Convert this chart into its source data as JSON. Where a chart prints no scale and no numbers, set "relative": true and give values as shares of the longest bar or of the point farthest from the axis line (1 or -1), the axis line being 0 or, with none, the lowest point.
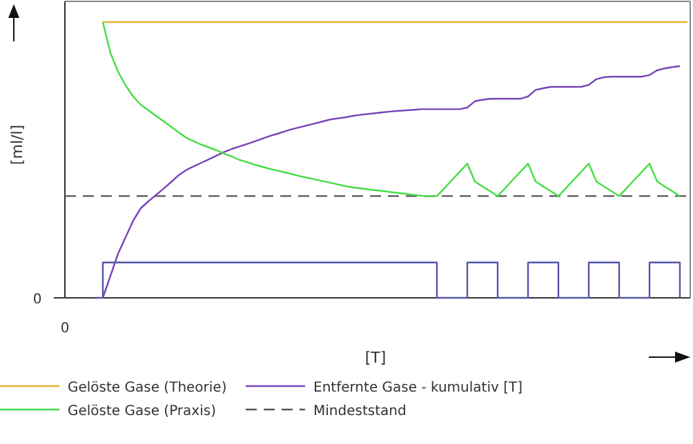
{
  "chart_data": {
    "type": "line",
    "relative": true,
    "xlabel": "[T]",
    "ylabel": "[ml/l]",
    "annotations": [
      "0",
      "0"
    ],
    "legend": "bottom",
    "categories": [
      null,
      null,
      null,
      null,
      null,
      null,
      null,
      null,
      null,
      null,
      null,
      null,
      null,
      null,
      null,
      null,
      null,
      null,
      null,
      null,
      null,
      null,
      null,
      null,
      null,
      null,
      null,
      null,
      null,
      null,
      null,
      null,
      null,
      null,
      null,
      null,
      null,
      null,
      null,
      null,
      null,
      null,
      null,
      null,
      null,
      null,
      null,
      null,
      null,
      null,
      null,
      null,
      null,
      null,
      null,
      null,
      null,
      null,
      null,
      null,
      null,
      null,
      null,
      null,
      null,
      null,
      null,
      null,
      null,
      null,
      null,
      null,
      null,
      null,
      null,
      null,
      null,
      null,
      null,
      null,
      null,
      null,
      null
    ],
    "series": [
      {
        "name": "Gelöste Gase (Theorie)",
        "color": "#e8b030",
        "values": [
          null,
          null,
          null,
          null,
          null,
          1,
          1,
          1,
          1,
          1,
          1,
          1,
          1,
          1,
          1,
          1,
          1,
          1,
          1,
          1,
          1,
          1,
          1,
          1,
          1,
          1,
          1,
          1,
          1,
          1,
          1,
          1,
          1,
          1,
          1,
          1,
          1,
          1,
          1,
          1,
          1,
          1,
          1,
          1,
          1,
          1,
          1,
          1,
          1,
          1,
          1,
          1,
          1,
          1,
          1,
          1,
          1,
          1,
          1,
          1,
          1,
          1,
          1,
          1,
          1,
          1,
          1,
          1,
          1,
          1,
          1,
          1,
          1,
          1,
          1,
          1,
          1,
          1,
          1,
          1,
          1,
          1,
          1
        ]
      },
      {
        "name": "Entfernte Gase - kumulativ [T]",
        "color": "#7744bb",
        "values": [
          null,
          null,
          null,
          null,
          null,
          0,
          0.08,
          0.16,
          0.22,
          0.28,
          0.325,
          0.35,
          0.373,
          0.396,
          0.42,
          0.445,
          0.464,
          0.477,
          0.49,
          0.503,
          0.516,
          0.529,
          0.54,
          0.549,
          0.558,
          0.567,
          0.577,
          0.587,
          0.595,
          0.604,
          0.612,
          0.619,
          0.626,
          0.633,
          0.64,
          0.647,
          0.651,
          0.655,
          0.66,
          0.664,
          0.667,
          0.67,
          0.673,
          0.676,
          0.678,
          0.68,
          0.682,
          0.684,
          0.684,
          0.684,
          0.684,
          0.684,
          0.684,
          0.69,
          0.713,
          0.718,
          0.722,
          0.722,
          0.722,
          0.722,
          0.722,
          0.73,
          0.754,
          0.76,
          0.765,
          0.765,
          0.765,
          0.765,
          0.765,
          0.772,
          0.793,
          0.8,
          0.802,
          0.802,
          0.802,
          0.802,
          0.802,
          0.808,
          0.825,
          0.832,
          0.837,
          0.84,
          null
        ]
      },
      {
        "name": "Gelöste Gase (Praxis)",
        "color": "#44dd44",
        "values": [
          null,
          null,
          null,
          null,
          null,
          1,
          0.888,
          0.82,
          0.77,
          0.73,
          0.7,
          0.68,
          0.66,
          0.64,
          0.62,
          0.6,
          0.58,
          0.567,
          0.555,
          0.545,
          0.535,
          0.523,
          0.512,
          0.5,
          0.492,
          0.483,
          0.475,
          0.468,
          0.461,
          0.455,
          0.448,
          0.441,
          0.435,
          0.429,
          0.423,
          0.417,
          0.411,
          0.405,
          0.4,
          0.397,
          0.393,
          0.39,
          0.387,
          0.383,
          0.38,
          0.377,
          0.373,
          0.37,
          0.369,
          0.369,
          0.398,
          0.428,
          0.457,
          0.487,
          0.422,
          0.404,
          0.387,
          0.369,
          0.398,
          0.428,
          0.457,
          0.487,
          0.422,
          0.404,
          0.387,
          0.369,
          0.398,
          0.428,
          0.457,
          0.487,
          0.422,
          0.404,
          0.387,
          0.369,
          0.398,
          0.428,
          0.457,
          0.487,
          0.422,
          0.404,
          0.387,
          0.369,
          null
        ]
      },
      {
        "type": "step",
        "color": "#5555aa",
        "values": [
          null,
          null,
          null,
          null,
          0,
          0.128,
          0.128,
          0.128,
          0.128,
          0.128,
          0.128,
          0.128,
          0.128,
          0.128,
          0.128,
          0.128,
          0.128,
          0.128,
          0.128,
          0.128,
          0.128,
          0.128,
          0.128,
          0.128,
          0.128,
          0.128,
          0.128,
          0.128,
          0.128,
          0.128,
          0.128,
          0.128,
          0.128,
          0.128,
          0.128,
          0.128,
          0.128,
          0.128,
          0.128,
          0.128,
          0.128,
          0.128,
          0.128,
          0.128,
          0.128,
          0.128,
          0.128,
          0.128,
          0.128,
          0,
          0,
          0,
          0,
          0.128,
          0.128,
          0.128,
          0.128,
          0,
          0,
          0,
          0,
          0.128,
          0.128,
          0.128,
          0.128,
          0,
          0,
          0,
          0,
          0.128,
          0.128,
          0.128,
          0.128,
          0,
          0,
          0,
          0,
          0.128,
          0.128,
          0.128,
          0.128,
          0,
          null
        ]
      }
    ],
    "ref_lines": [
      {
        "axis": "y",
        "value": 0.369,
        "label": "Mindeststand",
        "color": "#555555",
        "line_style": "dashed"
      }
    ]
  }
}
